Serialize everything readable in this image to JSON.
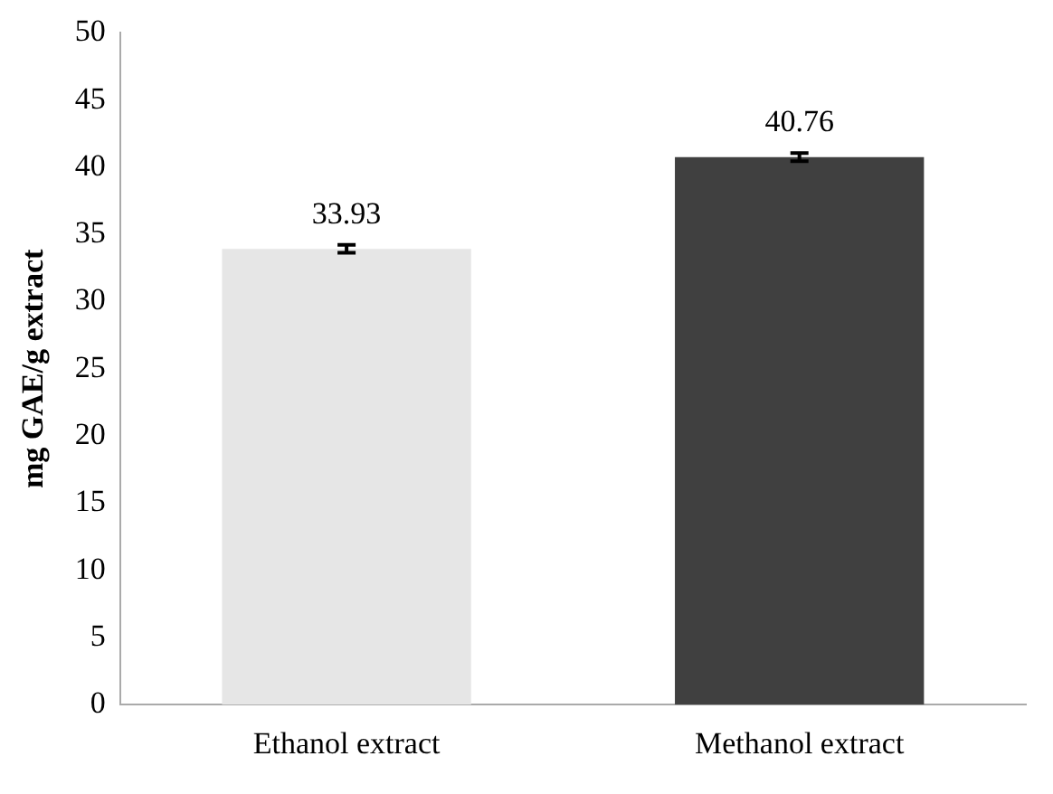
{
  "chart_data": {
    "type": "bar",
    "ylabel": "mg GAE/g extract",
    "categories": [
      "Ethanol extract",
      "Methanol extract"
    ],
    "values": [
      33.93,
      40.76
    ],
    "colors": [
      "#e6e6e6",
      "#404040"
    ],
    "errors": [
      0.3,
      0.3
    ],
    "ylim": [
      0,
      50
    ],
    "yticks": [
      0,
      5,
      10,
      15,
      20,
      25,
      30,
      35,
      40,
      45,
      50
    ],
    "grid": false,
    "data_labels": true
  }
}
